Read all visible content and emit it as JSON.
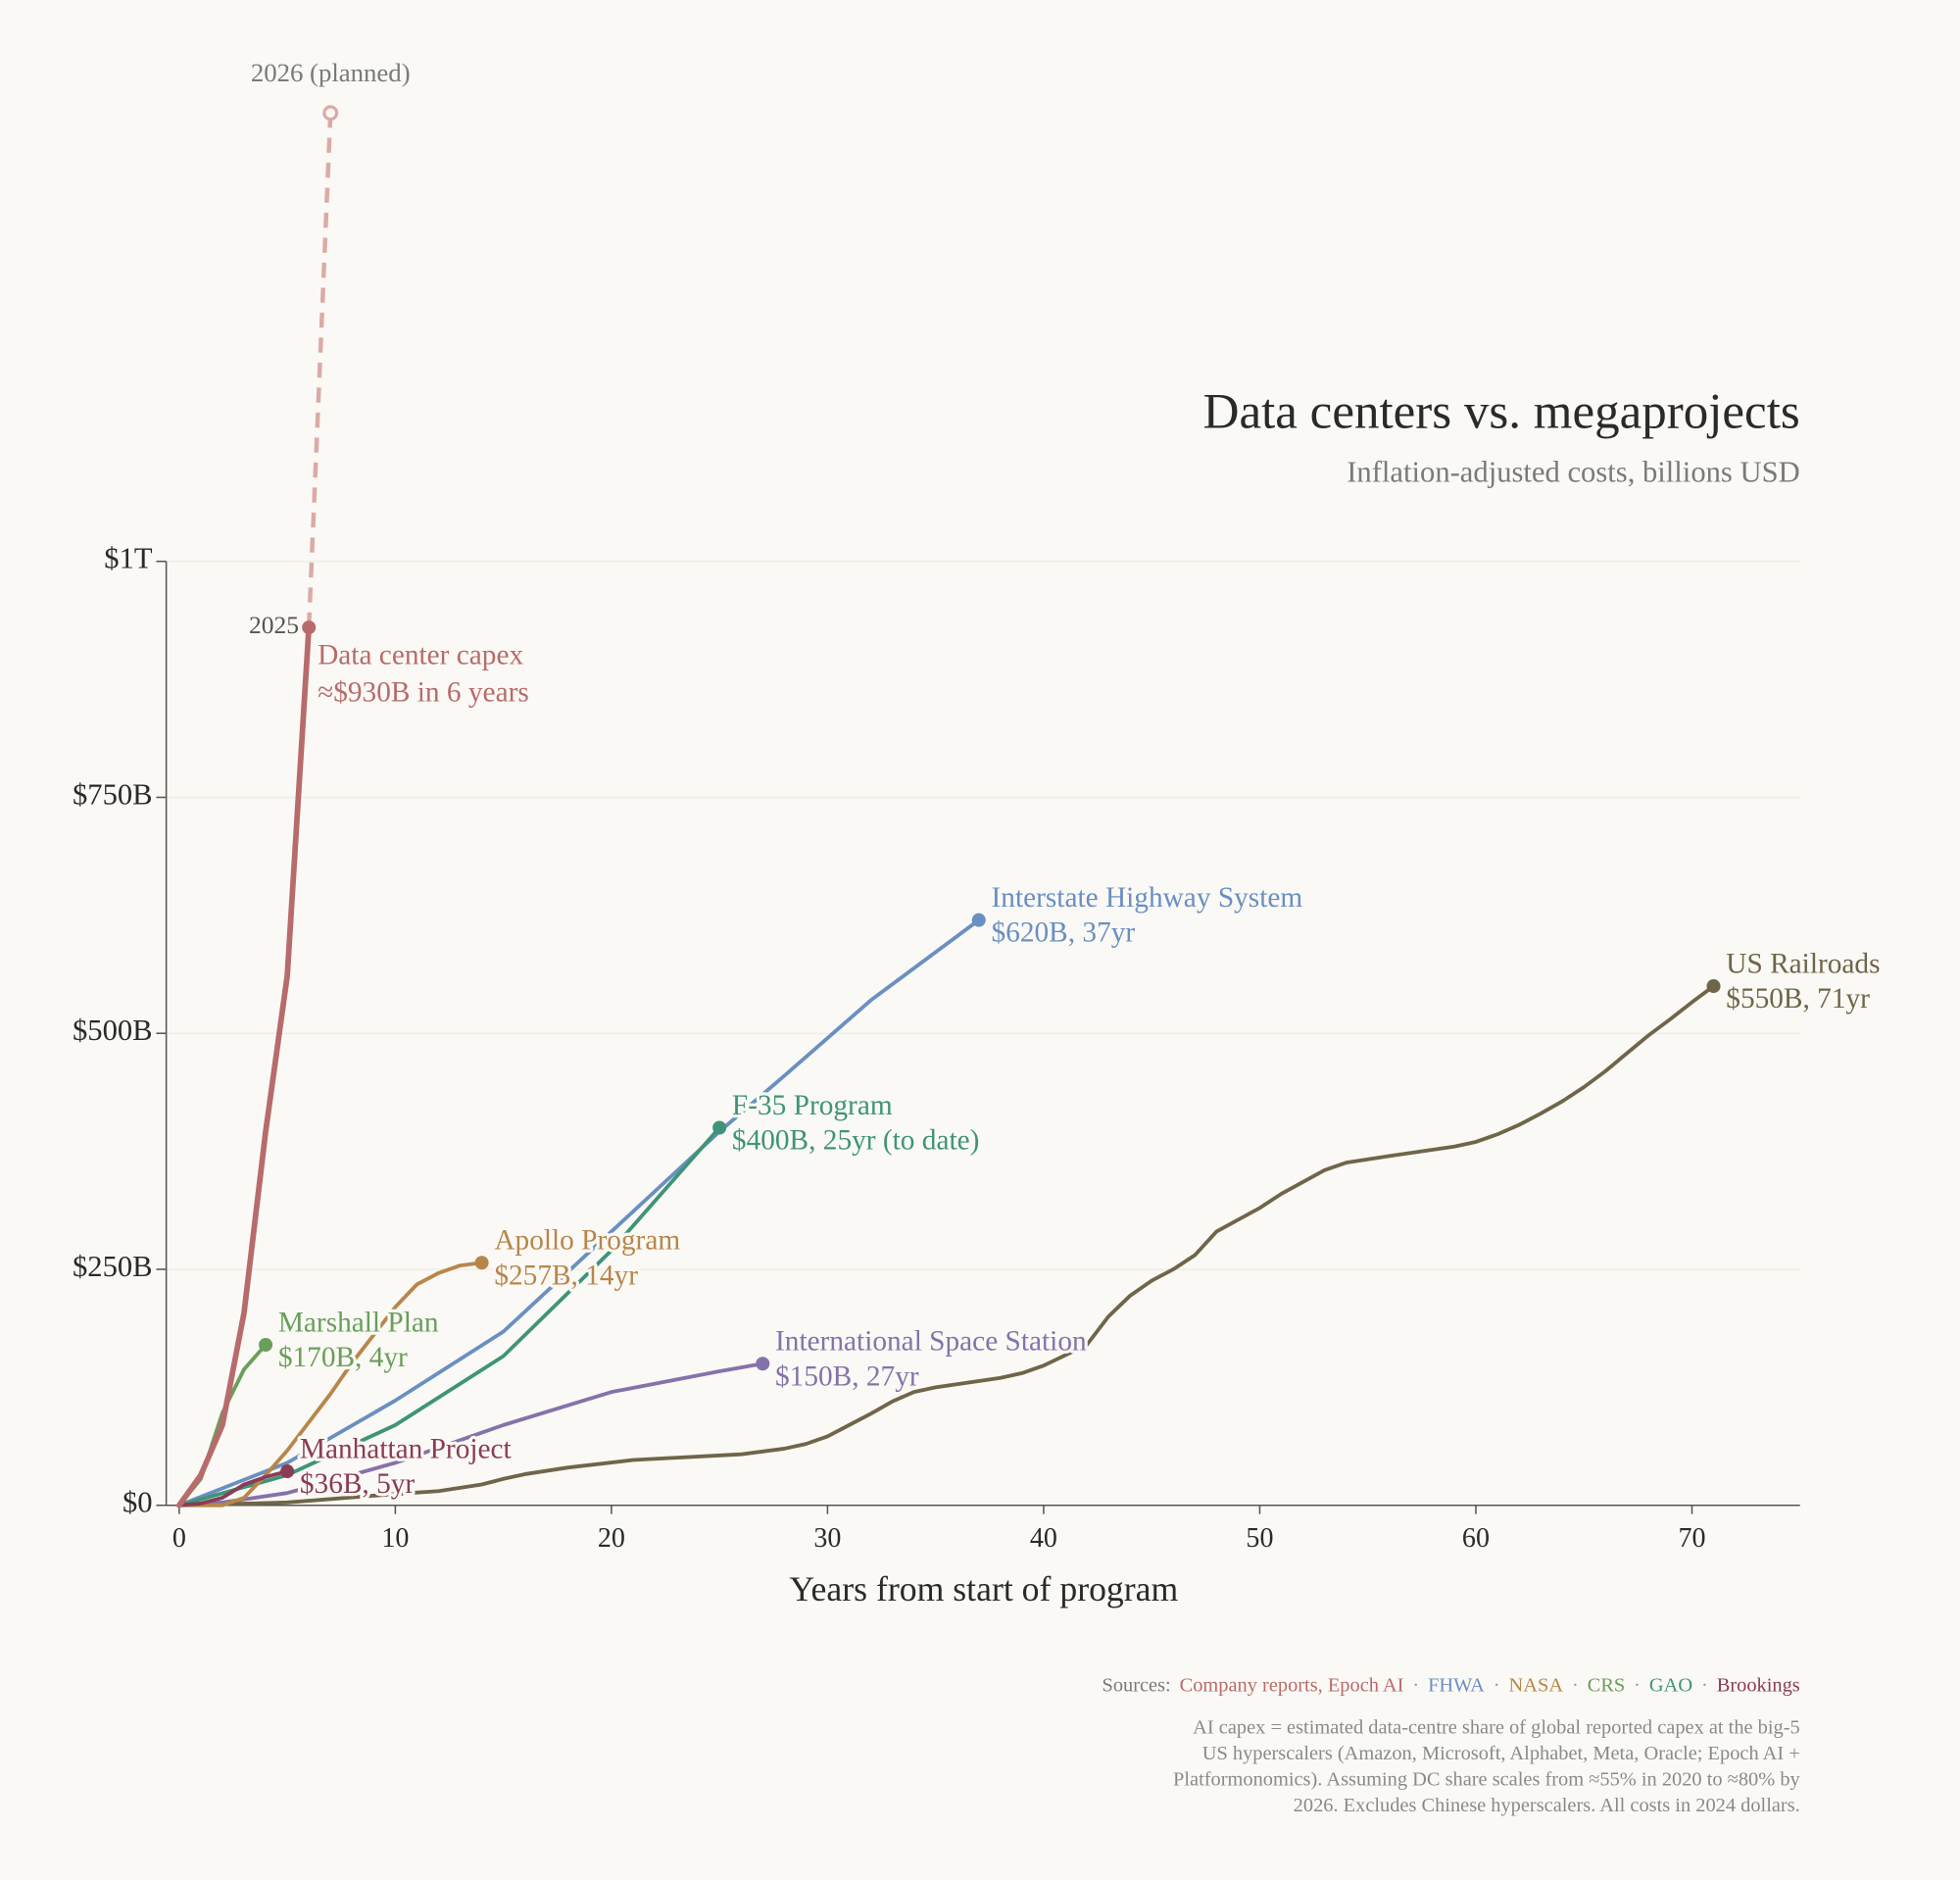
{
  "chart_data": {
    "type": "line",
    "title": "Data centers vs. megaprojects",
    "subtitle": "Inflation-adjusted costs, billions USD",
    "x_label": "Years from start of program",
    "xlim": [
      -0.6,
      75
    ],
    "xticks": [
      0,
      10,
      20,
      30,
      40,
      50,
      60,
      70
    ],
    "ylim": [
      0,
      1000
    ],
    "yticks": [
      {
        "value": 0,
        "label": "$0"
      },
      {
        "value": 250,
        "label": "$250B"
      },
      {
        "value": 500,
        "label": "$500B"
      },
      {
        "value": 750,
        "label": "$750B"
      },
      {
        "value": 1000,
        "label": "$1T"
      }
    ],
    "grid": true,
    "series": [
      {
        "name": "US Railroads",
        "note": "$550B, 71yr",
        "color": "#6f6548",
        "x": [
          0,
          5,
          10,
          12,
          14,
          15,
          16,
          18,
          21,
          26,
          28,
          29,
          30,
          31,
          32,
          33,
          34,
          35,
          38,
          39,
          40,
          42,
          43,
          44,
          45,
          46,
          47,
          48,
          50,
          51,
          53,
          54,
          56,
          59,
          60,
          61,
          62,
          63,
          64,
          65,
          66,
          68,
          69,
          70,
          71
        ],
        "values": [
          0,
          3,
          12,
          15,
          22,
          28,
          33,
          40,
          48,
          54,
          60,
          65,
          73,
          85,
          97,
          110,
          120,
          125,
          135,
          140,
          148,
          170,
          200,
          222,
          238,
          250,
          265,
          290,
          315,
          330,
          355,
          363,
          370,
          380,
          385,
          393,
          403,
          415,
          428,
          443,
          460,
          498,
          515,
          533,
          550
        ]
      },
      {
        "name": "International Space Station",
        "note": "$150B, 27yr",
        "color": "#8672aa",
        "x": [
          0,
          2,
          5,
          10,
          15,
          20,
          25,
          27
        ],
        "values": [
          0,
          3,
          13,
          45,
          85,
          120,
          142,
          150
        ]
      },
      {
        "name": "Interstate Highway System",
        "note": "$620B, 37yr",
        "color": "#6a8fc2",
        "x": [
          0,
          5,
          10,
          15,
          20,
          25,
          28,
          32,
          37
        ],
        "values": [
          0,
          45,
          111,
          184,
          290,
          396,
          455,
          535,
          620
        ]
      },
      {
        "name": "F-35 Program",
        "note": "$400B, 25yr (to date)",
        "color": "#3f9478",
        "x": [
          0,
          5,
          10,
          15,
          20,
          25
        ],
        "values": [
          0,
          32,
          85,
          158,
          270,
          400
        ]
      },
      {
        "name": "Apollo Program",
        "note": "$257B, 14yr",
        "color": "#b8864a",
        "x": [
          0,
          2,
          3,
          4,
          5,
          7,
          8,
          10,
          11,
          12,
          13,
          14
        ],
        "values": [
          0,
          0,
          8,
          32,
          58,
          118,
          151,
          210,
          234,
          246,
          254,
          257
        ]
      },
      {
        "name": "Marshall Plan",
        "note": "$170B, 4yr",
        "color": "#6a9e5a",
        "x": [
          0,
          1,
          2,
          3,
          4
        ],
        "values": [
          0,
          28,
          98,
          144,
          170
        ]
      },
      {
        "name": "Manhattan Project",
        "note": "$36B, 5yr",
        "color": "#8a3c55",
        "x": [
          0,
          1,
          2,
          3,
          4,
          5
        ],
        "values": [
          0,
          2,
          8,
          22,
          30,
          36
        ]
      },
      {
        "name": "Data center capex",
        "note": "≈$930B in 6 years",
        "color": "#b86b6b",
        "end_label": "2025",
        "x": [
          0,
          1,
          2,
          3,
          4,
          5,
          6
        ],
        "values": [
          0,
          32,
          85,
          204,
          396,
          561,
          930
        ],
        "projection": {
          "label": "2026 (planned)",
          "color": "#dcaaa6",
          "x": [
            6,
            7
          ],
          "values": [
            930,
            1475
          ]
        }
      }
    ],
    "sources": {
      "label": "Sources:",
      "separator": "·",
      "items": [
        {
          "text": "Company reports, Epoch AI",
          "color": "#b86b6b"
        },
        {
          "text": "FHWA",
          "color": "#6a8fc2"
        },
        {
          "text": "NASA",
          "color": "#b8864a"
        },
        {
          "text": "CRS",
          "color": "#6a9e5a"
        },
        {
          "text": "GAO",
          "color": "#3f9478"
        },
        {
          "text": "Brookings",
          "color": "#8a3c55"
        }
      ]
    },
    "footnote": [
      "AI capex = estimated data-centre share of global reported capex at the big-5",
      "US hyperscalers (Amazon, Microsoft, Alphabet, Meta, Oracle; Epoch AI +",
      "Platformonomics). Assuming DC share scales from ≈55% in 2020 to ≈80% by",
      "2026. Excludes Chinese hyperscalers. All costs in 2024 dollars."
    ]
  }
}
